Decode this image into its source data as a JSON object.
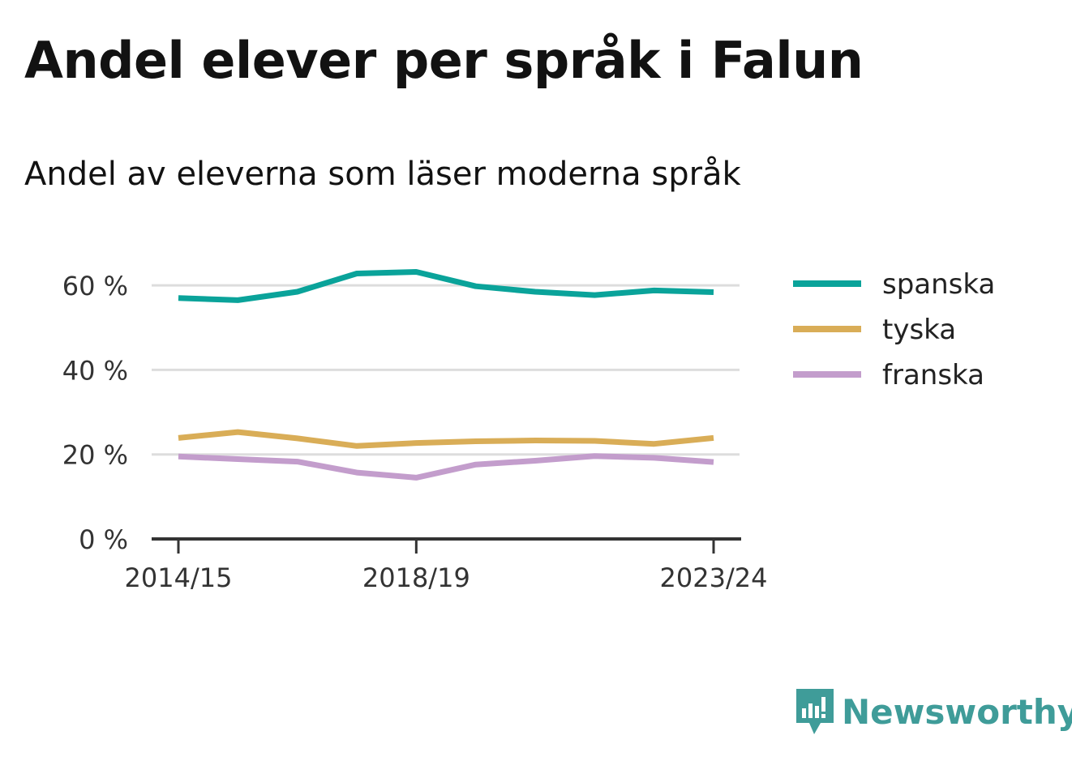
{
  "title": "Andel elever per språk i Falun",
  "subtitle": "Andel av eleverna som läser moderna språk",
  "brand": {
    "name": "Newsworthy",
    "color": "#3f9c99"
  },
  "chart_data": {
    "type": "line",
    "x": [
      "2014/15",
      "2015/16",
      "2016/17",
      "2017/18",
      "2018/19",
      "2019/20",
      "2020/21",
      "2021/22",
      "2022/23",
      "2023/24"
    ],
    "x_tick_labels": [
      "2014/15",
      "2018/19",
      "2023/24"
    ],
    "ylim": [
      0,
      70
    ],
    "y_ticks": [
      0,
      20,
      40,
      60
    ],
    "y_tick_labels": [
      "0 %",
      "20 %",
      "40 %",
      "60 %"
    ],
    "grid": true,
    "legend_position": "right",
    "series": [
      {
        "name": "spanska",
        "color": "#0aa39a",
        "values": [
          57.0,
          56.5,
          58.5,
          62.8,
          63.2,
          59.8,
          58.5,
          57.7,
          58.8,
          58.4
        ]
      },
      {
        "name": "tyska",
        "color": "#d9ad57",
        "values": [
          23.9,
          25.3,
          23.8,
          22.0,
          22.7,
          23.1,
          23.3,
          23.2,
          22.5,
          23.9
        ]
      },
      {
        "name": "franska",
        "color": "#c39dcc",
        "values": [
          19.5,
          18.9,
          18.3,
          15.7,
          14.5,
          17.6,
          18.5,
          19.6,
          19.2,
          18.2
        ]
      }
    ]
  }
}
